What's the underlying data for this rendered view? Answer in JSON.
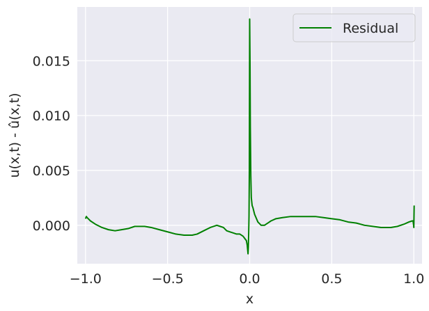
{
  "chart_data": {
    "type": "line",
    "xlabel": "x",
    "ylabel": "u(x,t) - û(x,t)",
    "xlim": [
      -1.05,
      1.05
    ],
    "ylim": [
      -0.0035,
      0.0199
    ],
    "xticks": [
      -1.0,
      -0.5,
      0.0,
      0.5,
      1.0
    ],
    "xtick_labels": [
      "−1.0",
      "−0.5",
      "0.0",
      "0.5",
      "1.0"
    ],
    "yticks": [
      0.0,
      0.005,
      0.01,
      0.015
    ],
    "ytick_labels": [
      "0.000",
      "0.005",
      "0.010",
      "0.015"
    ],
    "grid": true,
    "legend_position": "top-right",
    "series": [
      {
        "name": "Residual",
        "color": "#008000",
        "x": [
          -1.0,
          -0.995,
          -0.99,
          -0.97,
          -0.94,
          -0.9,
          -0.86,
          -0.82,
          -0.78,
          -0.74,
          -0.7,
          -0.67,
          -0.64,
          -0.6,
          -0.55,
          -0.5,
          -0.45,
          -0.4,
          -0.35,
          -0.32,
          -0.28,
          -0.24,
          -0.2,
          -0.18,
          -0.16,
          -0.14,
          -0.12,
          -0.1,
          -0.08,
          -0.06,
          -0.04,
          -0.03,
          -0.02,
          -0.015,
          -0.01,
          -0.008,
          -0.006,
          -0.004,
          -0.002,
          0.0,
          0.002,
          0.004,
          0.007,
          0.01,
          0.015,
          0.02,
          0.03,
          0.05,
          0.07,
          0.09,
          0.11,
          0.13,
          0.16,
          0.2,
          0.25,
          0.3,
          0.35,
          0.4,
          0.45,
          0.5,
          0.55,
          0.6,
          0.65,
          0.7,
          0.75,
          0.8,
          0.83,
          0.86,
          0.9,
          0.94,
          0.97,
          0.99,
          0.995,
          0.998,
          1.0,
          1.002
        ],
        "y": [
          0.0006,
          0.0008,
          0.0007,
          0.0004,
          0.0001,
          -0.0002,
          -0.0004,
          -0.0005,
          -0.0004,
          -0.0003,
          -0.0001,
          -0.0001,
          -0.0001,
          -0.0002,
          -0.0004,
          -0.0006,
          -0.0008,
          -0.0009,
          -0.0009,
          -0.0008,
          -0.0005,
          -0.0002,
          0.0,
          -0.0001,
          -0.0002,
          -0.0005,
          -0.0006,
          -0.0007,
          -0.0008,
          -0.0008,
          -0.001,
          -0.0012,
          -0.0014,
          -0.0018,
          -0.0026,
          -0.002,
          -0.0008,
          0.0008,
          0.005,
          0.0188,
          0.015,
          0.009,
          0.0045,
          0.0025,
          0.0018,
          0.0016,
          0.001,
          0.0003,
          0.0,
          0.0,
          0.0002,
          0.0004,
          0.0006,
          0.0007,
          0.0008,
          0.0008,
          0.0008,
          0.0008,
          0.0007,
          0.0006,
          0.0005,
          0.0003,
          0.0002,
          0.0,
          -0.0001,
          -0.0002,
          -0.0002,
          -0.0002,
          -0.0001,
          0.0001,
          0.0003,
          0.0004,
          0.0004,
          0.0001,
          -0.0002,
          0.0018
        ]
      }
    ]
  }
}
